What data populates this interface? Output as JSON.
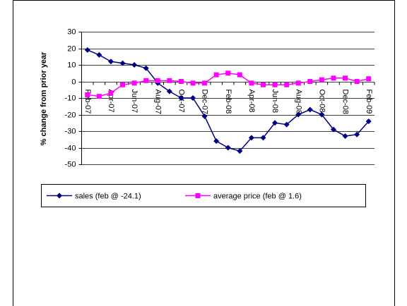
{
  "chart_data": {
    "type": "line",
    "y_label": "% change from prior year",
    "categories": [
      "Feb-07",
      null,
      "Apr-07",
      null,
      "Jun-07",
      null,
      "Aug-07",
      null,
      "Oct-07",
      null,
      "Dec-07",
      null,
      "Feb-08",
      null,
      "Apr-08",
      null,
      "Jun-08",
      null,
      "Aug-08",
      null,
      "Oct-08",
      null,
      "Dec-08",
      null,
      "Feb-09"
    ],
    "series": [
      {
        "name": "sales (feb @ -24.1)",
        "color": "#000080",
        "marker": "diamond",
        "values": [
          19,
          16,
          12,
          11,
          10,
          8,
          -1,
          -6,
          -10,
          -10,
          -21,
          -36,
          -40,
          -42,
          -34,
          -34,
          -25,
          -26,
          -20,
          -17,
          -20,
          -29,
          -33,
          -32,
          -24.1
        ]
      },
      {
        "name": "average price (feb @ 1.6)",
        "color": "#ff00ff",
        "marker": "square",
        "values": [
          -8,
          -9,
          -7,
          -2,
          -1,
          0.5,
          0.5,
          0.5,
          0,
          -1,
          -1,
          4,
          5,
          4,
          -1,
          -2,
          -2,
          -2,
          -1,
          0,
          1,
          2,
          2,
          0,
          1.6
        ]
      }
    ],
    "ylim": [
      -50,
      30
    ],
    "yticks": [
      -50,
      -40,
      -30,
      -20,
      -10,
      0,
      10,
      20,
      30
    ],
    "grid": true
  }
}
